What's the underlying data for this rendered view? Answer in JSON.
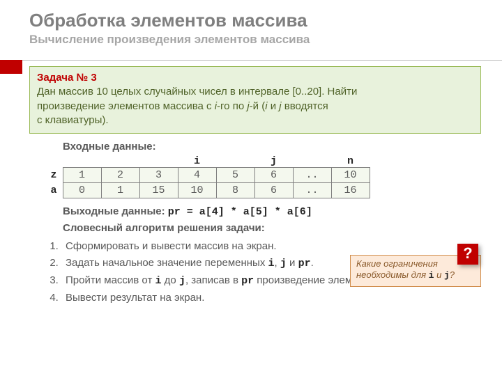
{
  "title": "Обработка элементов массива",
  "subtitle": "Вычисление произведения элементов массива",
  "task": {
    "number_label": "Задача № 3",
    "line1a": "Дан массив 10 целых случайных чисел в интервале [0..20]. Найти",
    "line2a": "произведение элементов массива c ",
    "i_label": "i",
    "line2b": "-го по ",
    "j_label": "j",
    "line2c": "-й (",
    "line2d": " и ",
    "line2e": " вводятся",
    "line3": "с клавиатуры)."
  },
  "input_label": "Входные данные:",
  "col_header": {
    "i": "i",
    "j": "j",
    "n": "n"
  },
  "row_labels": {
    "z": "z",
    "a": "a"
  },
  "table": {
    "z": [
      "1",
      "2",
      "3",
      "4",
      "5",
      "6",
      "..",
      "10"
    ],
    "a": [
      "0",
      "1",
      "15",
      "10",
      "8",
      "6",
      "..",
      "16"
    ]
  },
  "output": {
    "label": "Выходные данные:",
    "expr": "pr = a[4] * a[5] * a[6]"
  },
  "algo_label": "Словесный алгоритм решения задачи:",
  "steps": {
    "s1": "Сформировать и вывести массив на экран.",
    "s2a": "Задать начальное значение переменных ",
    "s2_i": "i",
    "s2_c1": ", ",
    "s2_j": "j",
    "s2_c2": " и ",
    "s2_pr": "pr",
    "s2_end": ".",
    "s3a": "Пройти массив от ",
    "s3_i": "i",
    "s3_mid": " до ",
    "s3_j": "j",
    "s3b": ", записав в ",
    "s3_pr": "pr",
    "s3_end": " произведение элементов.",
    "s4": "Вывести результат на экран."
  },
  "note": {
    "text1": "Какие ограничения необходимы для ",
    "i": "i",
    "and": " и ",
    "j": "j",
    "q": "?"
  },
  "qmark": "?",
  "colors": {
    "accent": "#c00000",
    "task_bg": "#e8f2dc",
    "task_border": "#9bbb59",
    "note_bg": "#fdeada",
    "note_border": "#d08c4b"
  }
}
